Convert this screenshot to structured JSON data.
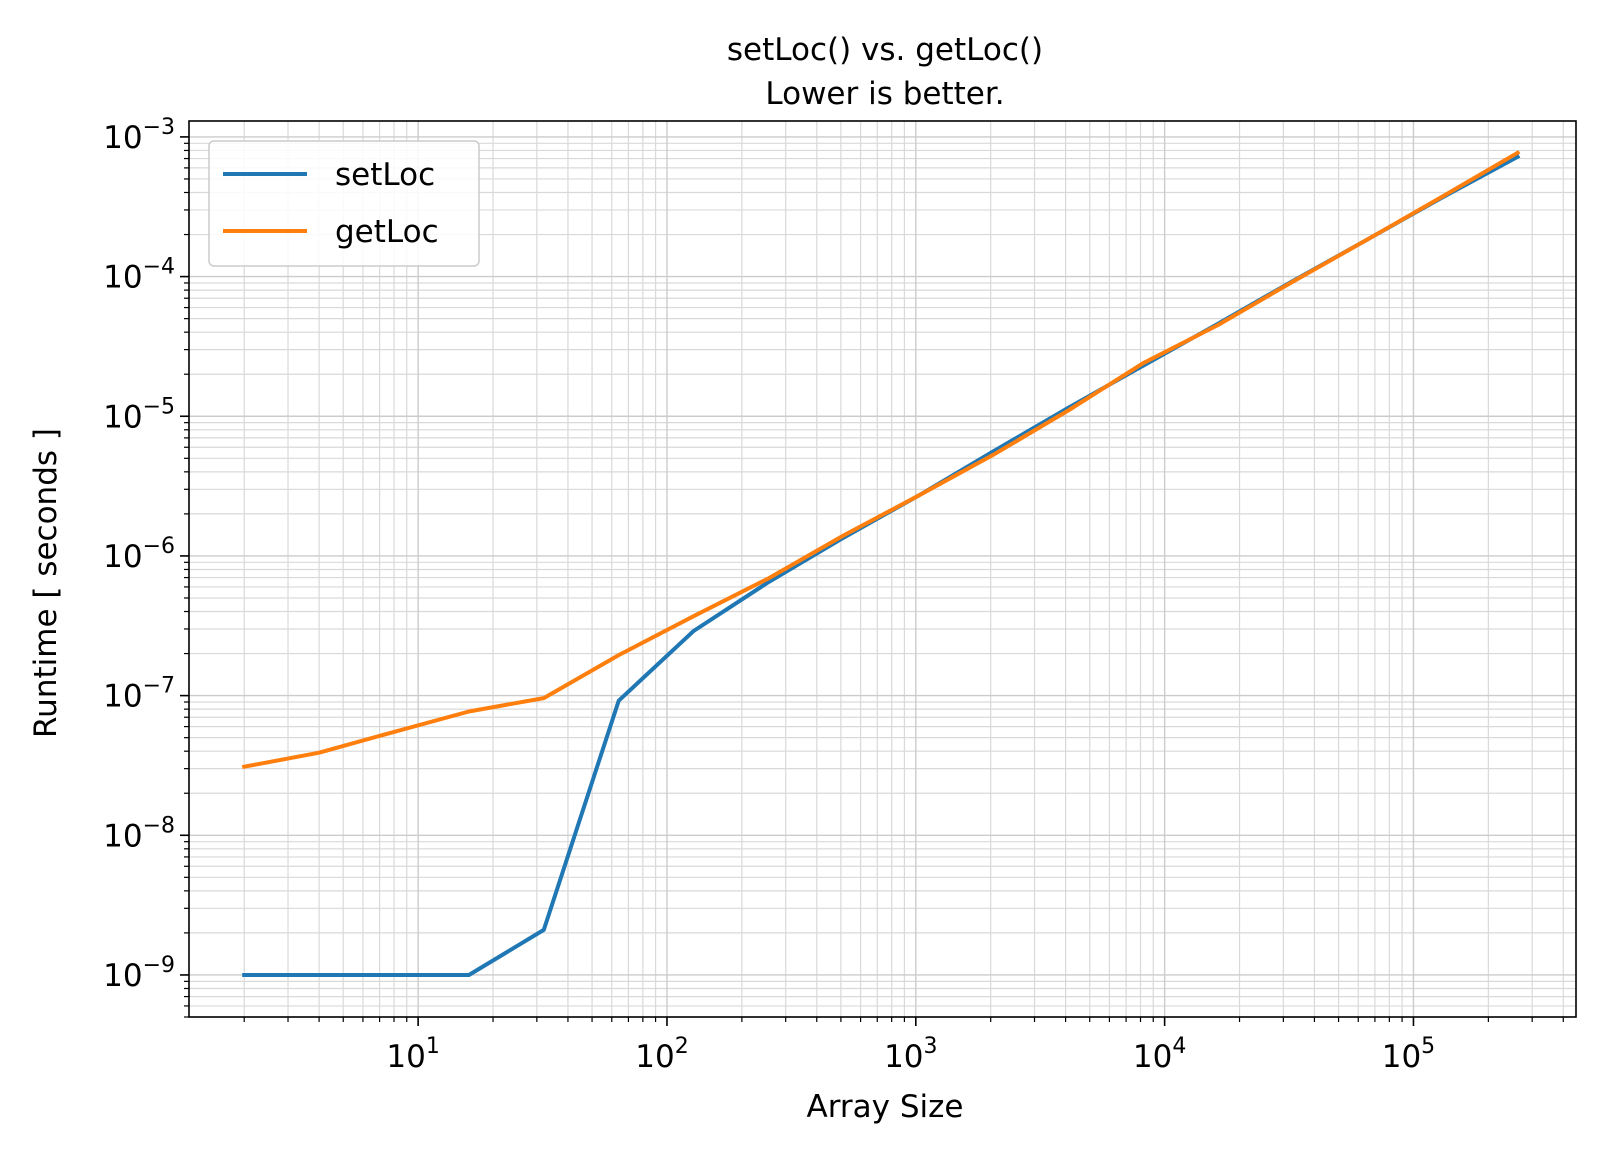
{
  "chart_data": {
    "type": "line",
    "title": "setLoc() vs. getLoc()",
    "subtitle": "Lower is better.",
    "xlabel": "Array Size",
    "ylabel": "Runtime [ seconds ]",
    "x_scale": "log",
    "y_scale": "log",
    "xlim": [
      1.2,
      450000
    ],
    "ylim": [
      5e-10,
      0.0013
    ],
    "x_major_ticks": [
      {
        "value": 10,
        "base": "10",
        "exp": "1"
      },
      {
        "value": 100,
        "base": "10",
        "exp": "2"
      },
      {
        "value": 1000,
        "base": "10",
        "exp": "3"
      },
      {
        "value": 10000,
        "base": "10",
        "exp": "4"
      },
      {
        "value": 100000,
        "base": "10",
        "exp": "5"
      }
    ],
    "y_major_ticks": [
      {
        "value": 1e-09,
        "base": "10",
        "exp": "−9"
      },
      {
        "value": 1e-08,
        "base": "10",
        "exp": "−8"
      },
      {
        "value": 1e-07,
        "base": "10",
        "exp": "−7"
      },
      {
        "value": 1e-06,
        "base": "10",
        "exp": "−6"
      },
      {
        "value": 1e-05,
        "base": "10",
        "exp": "−5"
      },
      {
        "value": 0.0001,
        "base": "10",
        "exp": "−4"
      },
      {
        "value": 0.001,
        "base": "10",
        "exp": "−3"
      }
    ],
    "grid": "major and minor",
    "legend_position": "upper-left",
    "x": [
      2,
      4,
      8,
      16,
      32,
      64,
      128,
      256,
      512,
      1024,
      2048,
      4096,
      8192,
      16384,
      32768,
      65536,
      131072,
      262144
    ],
    "series": [
      {
        "name": "setLoc",
        "color": "#1f77b4",
        "values": [
          1e-09,
          1e-09,
          1e-09,
          1e-09,
          2.1e-09,
          9.2e-08,
          2.9e-07,
          6.5e-07,
          1.35e-06,
          2.7e-06,
          5.6e-06,
          1.15e-05,
          2.3e-05,
          4.6e-05,
          9.3e-05,
          0.000185,
          0.00037,
          0.00072
        ]
      },
      {
        "name": "getLoc",
        "color": "#ff7f0e",
        "values": [
          3.1e-08,
          3.9e-08,
          5.5e-08,
          7.7e-08,
          9.6e-08,
          1.95e-07,
          3.7e-07,
          6.9e-07,
          1.4e-06,
          2.7e-06,
          5.3e-06,
          1.1e-05,
          2.4e-05,
          4.5e-05,
          9.2e-05,
          0.000185,
          0.000375,
          0.00077
        ]
      }
    ]
  }
}
